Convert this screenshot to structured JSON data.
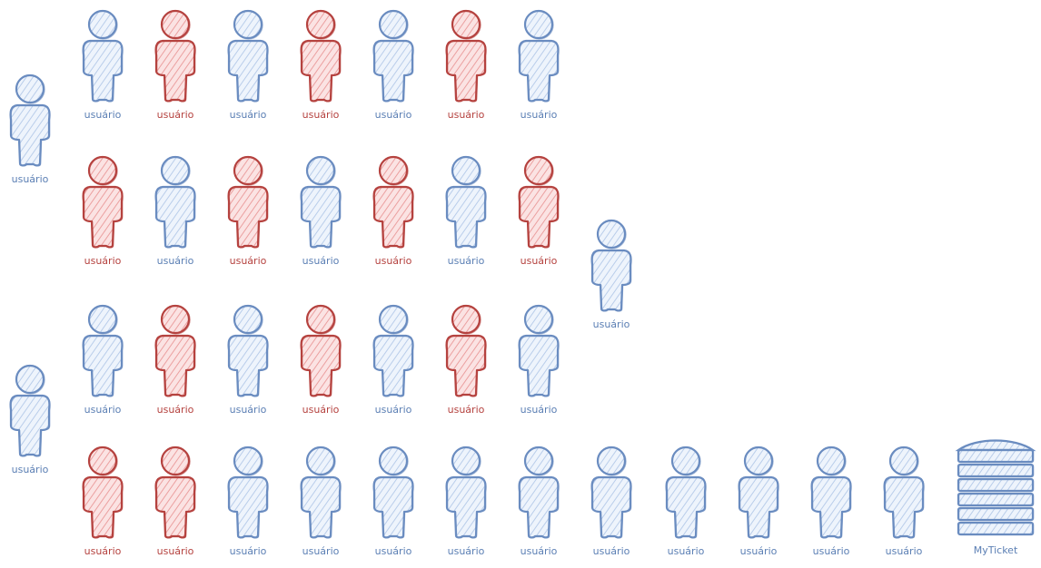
{
  "colors": {
    "blue_stroke": "#6a8cc0",
    "blue_fill": "#dce8f7",
    "red_stroke": "#b5423f",
    "red_fill": "#f6caca"
  },
  "icons": {
    "person": "person-icon",
    "server": "server-stack-icon"
  },
  "user_label": "usuário",
  "server_label": "MyTicket",
  "rows": [
    {
      "colors": [
        "blue",
        "red",
        "blue",
        "red",
        "blue",
        "red",
        "blue"
      ]
    },
    {
      "colors": [
        "red",
        "blue",
        "red",
        "blue",
        "red",
        "blue",
        "red"
      ]
    },
    {
      "colors": [
        "blue",
        "red",
        "blue",
        "red",
        "blue",
        "red",
        "blue"
      ]
    },
    {
      "colors": [
        "red",
        "red",
        "blue",
        "blue",
        "blue",
        "blue",
        "blue",
        "blue",
        "blue",
        "blue",
        "blue",
        "blue"
      ]
    }
  ],
  "standalone": [
    {
      "color": "blue",
      "label": "usuário"
    },
    {
      "color": "blue",
      "label": "usuário"
    },
    {
      "color": "blue",
      "label": "usuário"
    }
  ],
  "server": {
    "label": "MyTicket"
  }
}
